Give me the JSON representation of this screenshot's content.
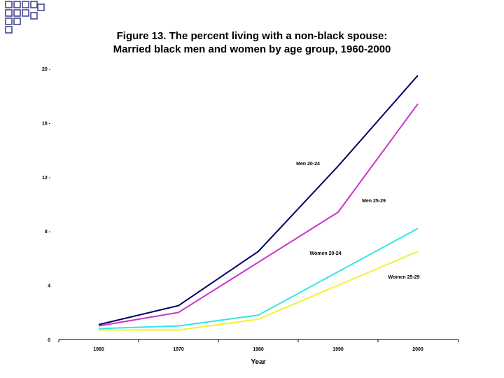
{
  "chart_data": {
    "type": "line",
    "title": "Figure 13. The percent living with a non-black spouse:",
    "subtitle": "Married black men and women by age group, 1960-2000",
    "xlabel": "Year",
    "ylabel": "",
    "x": [
      1960,
      1970,
      1980,
      1990,
      2000
    ],
    "x_tick_labels": [
      "1960",
      "1970",
      "1980",
      "1990",
      "2000"
    ],
    "ylim": [
      0,
      20
    ],
    "y_ticks": [
      0,
      4,
      8,
      12,
      16,
      20
    ],
    "y_tick_labels": [
      "0",
      "4",
      "8 -",
      "12 -",
      "16 -",
      "20 -"
    ],
    "grid": false,
    "series": [
      {
        "name": "Men 20-24",
        "color": "#000066",
        "values": [
          1.1,
          2.5,
          6.5,
          12.8,
          19.5
        ]
      },
      {
        "name": "Men 25-29",
        "color": "#cc33cc",
        "values": [
          1.0,
          2.0,
          5.7,
          9.4,
          17.4
        ]
      },
      {
        "name": "Women 20-24",
        "color": "#33e6e6",
        "values": [
          0.8,
          1.0,
          1.8,
          5.0,
          8.2
        ]
      },
      {
        "name": "Women 25-29",
        "color": "#f2f233",
        "values": [
          0.7,
          0.7,
          1.5,
          4.0,
          6.5
        ]
      }
    ]
  },
  "decor": {
    "color": "#3a3a8c"
  }
}
